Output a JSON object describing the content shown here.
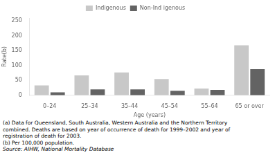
{
  "chart_data": {
    "type": "bar",
    "categories": [
      "0–24",
      "25–34",
      "35–44",
      "45–54",
      "55–64",
      "65 or over"
    ],
    "series": [
      {
        "name": "Indigenous",
        "color": "#c8c8c8",
        "values": [
          33,
          67,
          77,
          55,
          23,
          168
        ]
      },
      {
        "name": "Non-Ind igenous",
        "color": "#636363",
        "values": [
          10,
          20,
          20,
          15,
          18,
          88
        ]
      }
    ],
    "xlabel": "Age (years)",
    "ylabel": "Rate(b)",
    "ylim": [
      0,
      260
    ],
    "yticks": [
      0,
      50,
      100,
      150,
      200,
      250
    ],
    "grid": false,
    "legend": "top",
    "annotations": [
      "(a) Data for Queensland, South Australia, Western Australia and the Northern Territory",
      "combined.  Deaths are based on year of occurrence of death for 1999–2002 and year of",
      "registration of death for 2003.",
      "(b) Per 100,000 population.",
      "Source: AIHW, National Mortality Database"
    ]
  }
}
